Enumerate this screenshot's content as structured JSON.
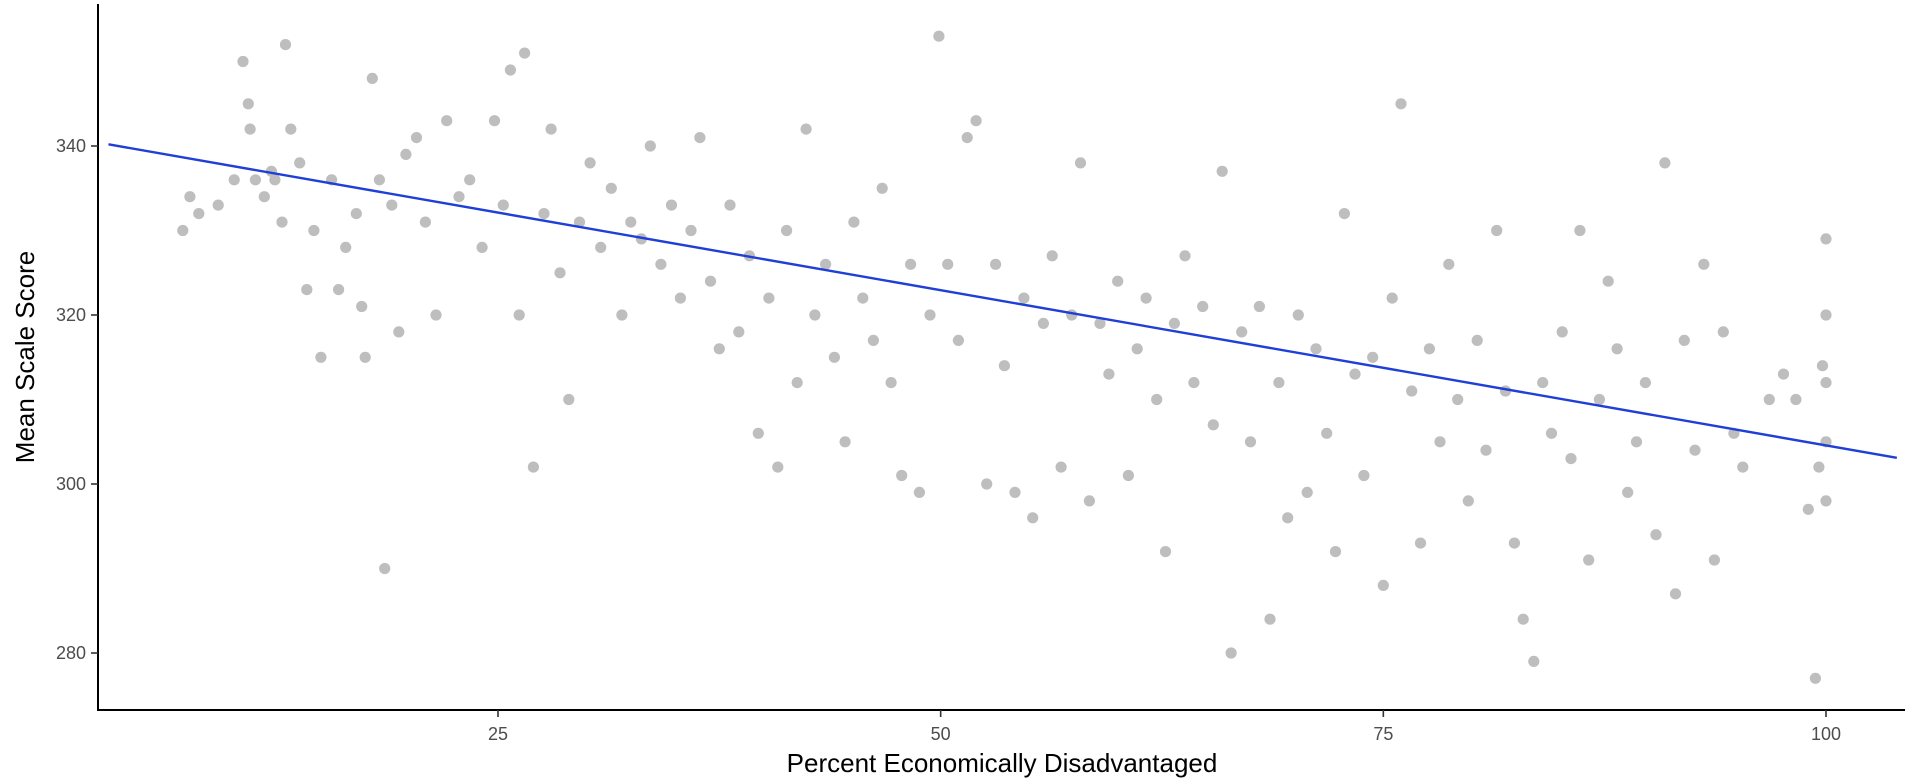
{
  "chart_data": {
    "type": "scatter",
    "xlabel": "Percent Economically Disadvantaged",
    "ylabel": "Mean Scale Score",
    "xlim": [
      3,
      104
    ],
    "ylim": [
      273,
      355
    ],
    "x_ticks": [
      25,
      50,
      75,
      100
    ],
    "y_ticks": [
      280,
      300,
      320,
      340
    ],
    "grid": false,
    "legend": "none",
    "point_color": "#bebebe",
    "line_color": "#1f3fd6",
    "trend_line": {
      "type": "linear",
      "points": [
        [
          3,
          340.2
        ],
        [
          104,
          303.1
        ]
      ]
    },
    "series": [
      {
        "points": [
          [
            7.2,
            330
          ],
          [
            7.6,
            334
          ],
          [
            8.1,
            332
          ],
          [
            9.2,
            333
          ],
          [
            10.1,
            336
          ],
          [
            10.6,
            350
          ],
          [
            10.9,
            345
          ],
          [
            11.0,
            342
          ],
          [
            11.3,
            336
          ],
          [
            11.8,
            334
          ],
          [
            12.2,
            337
          ],
          [
            12.4,
            336
          ],
          [
            12.8,
            331
          ],
          [
            13.0,
            352
          ],
          [
            13.3,
            342
          ],
          [
            13.8,
            338
          ],
          [
            14.2,
            323
          ],
          [
            14.6,
            330
          ],
          [
            15.0,
            315
          ],
          [
            15.6,
            336
          ],
          [
            16.0,
            323
          ],
          [
            16.4,
            328
          ],
          [
            17.0,
            332
          ],
          [
            17.3,
            321
          ],
          [
            17.5,
            315
          ],
          [
            17.9,
            348
          ],
          [
            18.3,
            336
          ],
          [
            18.6,
            290
          ],
          [
            19.0,
            333
          ],
          [
            19.4,
            318
          ],
          [
            19.8,
            339
          ],
          [
            20.4,
            341
          ],
          [
            20.9,
            331
          ],
          [
            21.5,
            320
          ],
          [
            22.1,
            343
          ],
          [
            22.8,
            334
          ],
          [
            23.4,
            336
          ],
          [
            24.1,
            328
          ],
          [
            24.8,
            343
          ],
          [
            25.3,
            333
          ],
          [
            25.7,
            349
          ],
          [
            26.2,
            320
          ],
          [
            26.5,
            351
          ],
          [
            27.0,
            302
          ],
          [
            27.6,
            332
          ],
          [
            28.0,
            342
          ],
          [
            28.5,
            325
          ],
          [
            29.0,
            310
          ],
          [
            29.6,
            331
          ],
          [
            30.2,
            338
          ],
          [
            30.8,
            328
          ],
          [
            31.4,
            335
          ],
          [
            32.0,
            320
          ],
          [
            32.5,
            331
          ],
          [
            33.1,
            329
          ],
          [
            33.6,
            340
          ],
          [
            34.2,
            326
          ],
          [
            34.8,
            333
          ],
          [
            35.3,
            322
          ],
          [
            35.9,
            330
          ],
          [
            36.4,
            341
          ],
          [
            37.0,
            324
          ],
          [
            37.5,
            316
          ],
          [
            38.1,
            333
          ],
          [
            38.6,
            318
          ],
          [
            39.2,
            327
          ],
          [
            39.7,
            306
          ],
          [
            40.3,
            322
          ],
          [
            40.8,
            302
          ],
          [
            41.3,
            330
          ],
          [
            41.9,
            312
          ],
          [
            42.4,
            342
          ],
          [
            42.9,
            320
          ],
          [
            43.5,
            326
          ],
          [
            44.0,
            315
          ],
          [
            44.6,
            305
          ],
          [
            45.1,
            331
          ],
          [
            45.6,
            322
          ],
          [
            46.2,
            317
          ],
          [
            46.7,
            335
          ],
          [
            47.2,
            312
          ],
          [
            47.8,
            301
          ],
          [
            48.3,
            326
          ],
          [
            48.8,
            299
          ],
          [
            49.4,
            320
          ],
          [
            49.9,
            353
          ],
          [
            50.4,
            326
          ],
          [
            51.0,
            317
          ],
          [
            51.5,
            341
          ],
          [
            52.0,
            343
          ],
          [
            52.6,
            300
          ],
          [
            53.1,
            326
          ],
          [
            53.6,
            314
          ],
          [
            54.2,
            299
          ],
          [
            54.7,
            322
          ],
          [
            55.2,
            296
          ],
          [
            55.8,
            319
          ],
          [
            56.3,
            327
          ],
          [
            56.8,
            302
          ],
          [
            57.4,
            320
          ],
          [
            57.9,
            338
          ],
          [
            58.4,
            298
          ],
          [
            59.0,
            319
          ],
          [
            59.5,
            313
          ],
          [
            60.0,
            324
          ],
          [
            60.6,
            301
          ],
          [
            61.1,
            316
          ],
          [
            61.6,
            322
          ],
          [
            62.2,
            310
          ],
          [
            62.7,
            292
          ],
          [
            63.2,
            319
          ],
          [
            63.8,
            327
          ],
          [
            64.3,
            312
          ],
          [
            64.8,
            321
          ],
          [
            65.4,
            307
          ],
          [
            65.9,
            337
          ],
          [
            66.4,
            280
          ],
          [
            67.0,
            318
          ],
          [
            67.5,
            305
          ],
          [
            68.0,
            321
          ],
          [
            68.6,
            284
          ],
          [
            69.1,
            312
          ],
          [
            69.6,
            296
          ],
          [
            70.2,
            320
          ],
          [
            70.7,
            299
          ],
          [
            71.2,
            316
          ],
          [
            71.8,
            306
          ],
          [
            72.3,
            292
          ],
          [
            72.8,
            332
          ],
          [
            73.4,
            313
          ],
          [
            73.9,
            301
          ],
          [
            74.4,
            315
          ],
          [
            75.0,
            288
          ],
          [
            75.5,
            322
          ],
          [
            76.0,
            345
          ],
          [
            76.6,
            311
          ],
          [
            77.1,
            293
          ],
          [
            77.6,
            316
          ],
          [
            78.2,
            305
          ],
          [
            78.7,
            326
          ],
          [
            79.2,
            310
          ],
          [
            79.8,
            298
          ],
          [
            80.3,
            317
          ],
          [
            80.8,
            304
          ],
          [
            81.4,
            330
          ],
          [
            81.9,
            311
          ],
          [
            82.4,
            293
          ],
          [
            82.9,
            284
          ],
          [
            83.5,
            279
          ],
          [
            84.0,
            312
          ],
          [
            84.5,
            306
          ],
          [
            85.1,
            318
          ],
          [
            85.6,
            303
          ],
          [
            86.1,
            330
          ],
          [
            86.6,
            291
          ],
          [
            87.2,
            310
          ],
          [
            87.7,
            324
          ],
          [
            88.2,
            316
          ],
          [
            88.8,
            299
          ],
          [
            89.3,
            305
          ],
          [
            89.8,
            312
          ],
          [
            90.4,
            294
          ],
          [
            90.9,
            338
          ],
          [
            91.5,
            287
          ],
          [
            92.0,
            317
          ],
          [
            92.6,
            304
          ],
          [
            93.1,
            326
          ],
          [
            93.7,
            291
          ],
          [
            94.2,
            318
          ],
          [
            94.8,
            306
          ],
          [
            95.3,
            302
          ],
          [
            96.8,
            310
          ],
          [
            97.6,
            313
          ],
          [
            98.3,
            310
          ],
          [
            99.0,
            297
          ],
          [
            99.4,
            277
          ],
          [
            99.6,
            302
          ],
          [
            99.8,
            314
          ],
          [
            100.0,
            329
          ],
          [
            100.0,
            320
          ],
          [
            100.0,
            312
          ],
          [
            100.0,
            305
          ],
          [
            100.0,
            298
          ]
        ]
      }
    ]
  }
}
